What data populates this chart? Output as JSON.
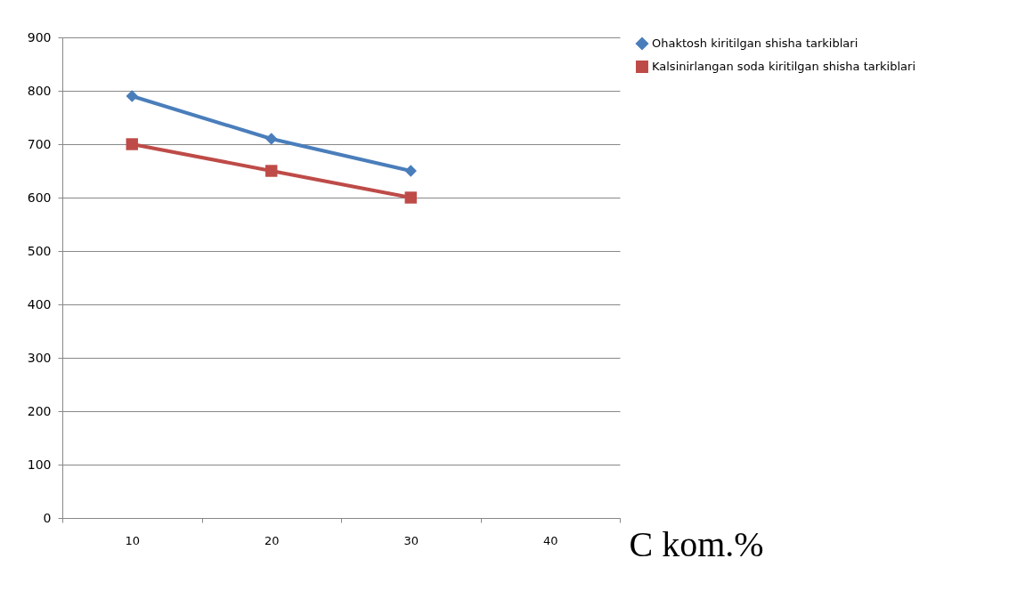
{
  "chart_data": {
    "type": "line",
    "xlabel": "C kom.%",
    "categories": [
      "10",
      "20",
      "30",
      "40"
    ],
    "series": [
      {
        "name": "Ohaktosh kiritilgan shisha tarkiblari",
        "color": "#4a7ebb",
        "marker": "diamond",
        "values": [
          790,
          710,
          650,
          null
        ]
      },
      {
        "name": "Kalsinirlangan soda kiritilgan shisha tarkiblari",
        "color": "#be4b48",
        "marker": "square",
        "values": [
          700,
          650,
          600,
          null
        ]
      }
    ],
    "ylim": [
      0,
      900
    ],
    "yticks": [
      0,
      100,
      200,
      300,
      400,
      500,
      600,
      700,
      800,
      900
    ],
    "grid": "y",
    "legend": "right"
  }
}
